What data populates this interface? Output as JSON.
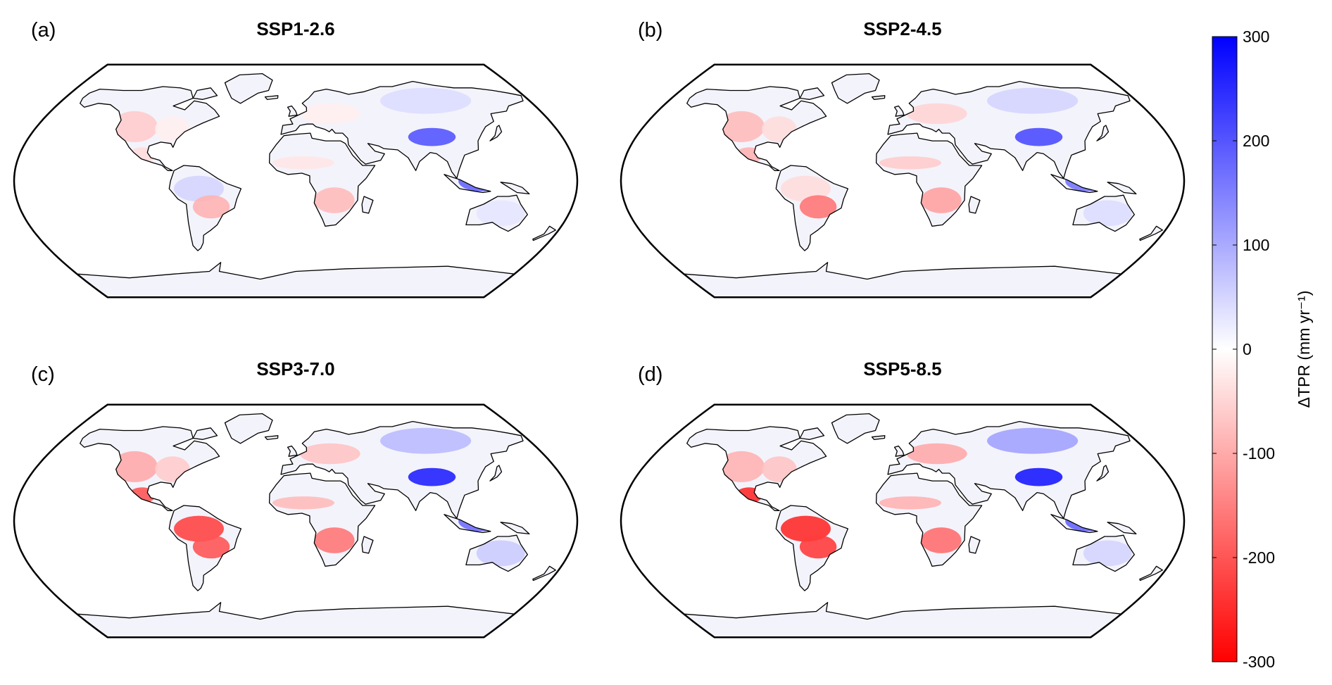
{
  "panels": [
    {
      "label": "(a)",
      "title": "SSP1-2.6",
      "anomalies": {
        "na_west": -60,
        "na_east": -20,
        "mexico": -40,
        "amazon": 50,
        "s_brazil": -90,
        "sahel": -30,
        "s_africa": -80,
        "europe": -20,
        "siberia": 40,
        "tibet": 200,
        "se_asia": 180,
        "australia": 30
      }
    },
    {
      "label": "(b)",
      "title": "SSP2-4.5",
      "anomalies": {
        "na_west": -80,
        "na_east": -40,
        "mexico": -90,
        "amazon": -40,
        "s_brazil": -160,
        "sahel": -60,
        "s_africa": -110,
        "europe": -50,
        "siberia": 50,
        "tibet": 210,
        "se_asia": 160,
        "australia": 40
      }
    },
    {
      "label": "(c)",
      "title": "SSP3-7.0",
      "anomalies": {
        "na_west": -100,
        "na_east": -60,
        "mexico": -200,
        "amazon": -220,
        "s_brazil": -200,
        "sahel": -80,
        "s_africa": -160,
        "europe": -70,
        "siberia": 80,
        "tibet": 260,
        "se_asia": 170,
        "australia": 60
      }
    },
    {
      "label": "(d)",
      "title": "SSP5-8.5",
      "anomalies": {
        "na_west": -90,
        "na_east": -70,
        "mexico": -250,
        "amazon": -250,
        "s_brazil": -230,
        "sahel": -90,
        "s_africa": -170,
        "europe": -100,
        "siberia": 110,
        "tibet": 270,
        "se_asia": 180,
        "australia": 50
      }
    }
  ],
  "colorbar": {
    "label": "ΔTPR (mm yr⁻¹)",
    "min": -300,
    "max": 300,
    "ticks": [
      "300",
      "200",
      "100",
      "0",
      "-100",
      "-200",
      "-300"
    ],
    "color_max": "#0000ff",
    "color_mid": "#ffffff",
    "color_min": "#ff0000"
  }
}
